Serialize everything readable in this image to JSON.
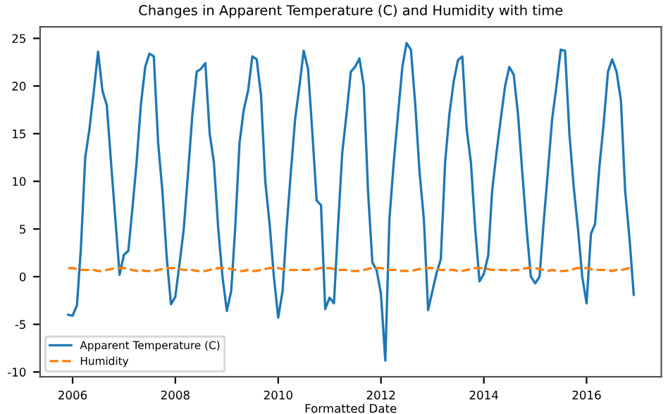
{
  "chart_data": {
    "type": "line",
    "title": "Changes in Apparent Temperature (C) and Humidity with time",
    "xlabel": "Formatted Date",
    "x": [
      "2005-12",
      "2006-01",
      "2006-02",
      "2006-03",
      "2006-04",
      "2006-05",
      "2006-06",
      "2006-07",
      "2006-08",
      "2006-09",
      "2006-10",
      "2006-11",
      "2006-12",
      "2007-01",
      "2007-02",
      "2007-03",
      "2007-04",
      "2007-05",
      "2007-06",
      "2007-07",
      "2007-08",
      "2007-09",
      "2007-10",
      "2007-11",
      "2007-12",
      "2008-01",
      "2008-02",
      "2008-03",
      "2008-04",
      "2008-05",
      "2008-06",
      "2008-07",
      "2008-08",
      "2008-09",
      "2008-10",
      "2008-11",
      "2008-12",
      "2009-01",
      "2009-02",
      "2009-03",
      "2009-04",
      "2009-05",
      "2009-06",
      "2009-07",
      "2009-08",
      "2009-09",
      "2009-10",
      "2009-11",
      "2009-12",
      "2010-01",
      "2010-02",
      "2010-03",
      "2010-04",
      "2010-05",
      "2010-06",
      "2010-07",
      "2010-08",
      "2010-09",
      "2010-10",
      "2010-11",
      "2010-12",
      "2011-01",
      "2011-02",
      "2011-03",
      "2011-04",
      "2011-05",
      "2011-06",
      "2011-07",
      "2011-08",
      "2011-09",
      "2011-10",
      "2011-11",
      "2011-12",
      "2012-01",
      "2012-02",
      "2012-03",
      "2012-04",
      "2012-05",
      "2012-06",
      "2012-07",
      "2012-08",
      "2012-09",
      "2012-10",
      "2012-11",
      "2012-12",
      "2013-01",
      "2013-02",
      "2013-03",
      "2013-04",
      "2013-05",
      "2013-06",
      "2013-07",
      "2013-08",
      "2013-09",
      "2013-10",
      "2013-11",
      "2013-12",
      "2014-01",
      "2014-02",
      "2014-03",
      "2014-04",
      "2014-05",
      "2014-06",
      "2014-07",
      "2014-08",
      "2014-09",
      "2014-10",
      "2014-11",
      "2014-12",
      "2015-01",
      "2015-02",
      "2015-03",
      "2015-04",
      "2015-05",
      "2015-06",
      "2015-07",
      "2015-08",
      "2015-09",
      "2015-10",
      "2015-11",
      "2015-12",
      "2016-01",
      "2016-02",
      "2016-03",
      "2016-04",
      "2016-05",
      "2016-06",
      "2016-07",
      "2016-08",
      "2016-09",
      "2016-10",
      "2016-11",
      "2016-12"
    ],
    "series": [
      {
        "name": "Apparent Temperature (C)",
        "color": "#1f77b4",
        "line_style": "solid",
        "values": [
          -4,
          -4.1,
          -3,
          3,
          12.5,
          15.5,
          19.5,
          23.6,
          19.5,
          18,
          12,
          6,
          0.2,
          2.3,
          2.7,
          7,
          12,
          18,
          22,
          23.4,
          23.1,
          14,
          9,
          2,
          -2.9,
          -2.1,
          1.5,
          5,
          11,
          17,
          21.5,
          21.8,
          22.4,
          15,
          12,
          5,
          0,
          -3.6,
          -1.5,
          5,
          14,
          17.5,
          19.5,
          23.1,
          22.8,
          19,
          10,
          5.5,
          0,
          -4.3,
          -1.5,
          5,
          11,
          16.5,
          20,
          23.7,
          21.8,
          15,
          8,
          7.5,
          -3.4,
          -2.2,
          -2.8,
          5,
          13,
          17,
          21.5,
          22,
          22.9,
          20,
          9,
          1.5,
          0.7,
          -1.8,
          -8.8,
          6,
          12,
          17,
          22,
          24.5,
          23.8,
          18,
          11,
          6,
          -3.5,
          -1.5,
          0.5,
          1.8,
          12,
          17,
          20.5,
          22.7,
          23.1,
          15.5,
          12,
          5,
          -0.5,
          0.3,
          2.2,
          9,
          13,
          16.5,
          20,
          22,
          21.2,
          17,
          11,
          5,
          0,
          -0.7,
          0,
          5.5,
          11,
          16.5,
          20,
          23.8,
          23.7,
          15,
          9.5,
          5,
          0,
          -2.8,
          4.5,
          5.5,
          11.5,
          16,
          21.5,
          22.8,
          21.5,
          18.5,
          9,
          4,
          -1.9
        ]
      },
      {
        "name": "Humidity",
        "color": "#ff7f0e",
        "line_style": "dashed",
        "values": [
          0.9,
          0.9,
          0.8,
          0.7,
          0.7,
          0.7,
          0.7,
          0.6,
          0.6,
          0.7,
          0.8,
          0.9,
          0.9,
          0.9,
          0.8,
          0.7,
          0.6,
          0.7,
          0.6,
          0.6,
          0.6,
          0.7,
          0.8,
          0.9,
          0.9,
          0.9,
          0.8,
          0.7,
          0.7,
          0.7,
          0.6,
          0.6,
          0.6,
          0.7,
          0.8,
          0.9,
          0.9,
          0.9,
          0.8,
          0.7,
          0.6,
          0.6,
          0.7,
          0.6,
          0.6,
          0.7,
          0.8,
          0.9,
          0.9,
          0.9,
          0.8,
          0.7,
          0.7,
          0.7,
          0.7,
          0.7,
          0.7,
          0.8,
          0.8,
          0.9,
          0.9,
          0.9,
          0.8,
          0.7,
          0.7,
          0.7,
          0.6,
          0.6,
          0.6,
          0.7,
          0.8,
          0.9,
          0.9,
          0.9,
          0.8,
          0.7,
          0.7,
          0.7,
          0.6,
          0.6,
          0.6,
          0.7,
          0.8,
          0.9,
          0.9,
          0.9,
          0.8,
          0.7,
          0.7,
          0.7,
          0.7,
          0.6,
          0.6,
          0.7,
          0.8,
          0.9,
          0.9,
          0.9,
          0.8,
          0.7,
          0.7,
          0.7,
          0.7,
          0.6,
          0.7,
          0.7,
          0.8,
          0.9,
          0.9,
          0.9,
          0.8,
          0.7,
          0.6,
          0.7,
          0.6,
          0.6,
          0.6,
          0.7,
          0.8,
          0.9,
          0.9,
          0.9,
          0.8,
          0.7,
          0.7,
          0.7,
          0.7,
          0.6,
          0.7,
          0.7,
          0.8,
          0.9,
          0.9
        ]
      }
    ],
    "xlim": [
      "2005-05-15",
      "2017-06-15"
    ],
    "xticks": [
      {
        "value": "2006-01-01",
        "label": "2006"
      },
      {
        "value": "2008-01-01",
        "label": "2008"
      },
      {
        "value": "2010-01-01",
        "label": "2010"
      },
      {
        "value": "2012-01-01",
        "label": "2012"
      },
      {
        "value": "2014-01-01",
        "label": "2014"
      },
      {
        "value": "2016-01-01",
        "label": "2016"
      }
    ],
    "ylim": [
      -10.5,
      26.2
    ],
    "yticks": [
      -10,
      -5,
      0,
      5,
      10,
      15,
      20,
      25
    ],
    "grid": false,
    "legend": "bottom left"
  }
}
